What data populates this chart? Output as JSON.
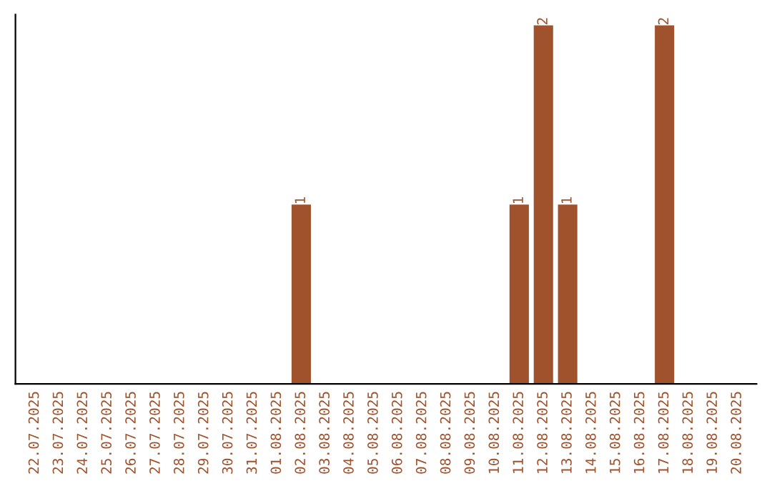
{
  "chart_data": {
    "type": "bar",
    "categories": [
      "22.07.2025",
      "23.07.2025",
      "24.07.2025",
      "25.07.2025",
      "26.07.2025",
      "27.07.2025",
      "28.07.2025",
      "29.07.2025",
      "30.07.2025",
      "31.07.2025",
      "01.08.2025",
      "02.08.2025",
      "03.08.2025",
      "04.08.2025",
      "05.08.2025",
      "06.08.2025",
      "07.08.2025",
      "08.08.2025",
      "09.08.2025",
      "10.08.2025",
      "11.08.2025",
      "12.08.2025",
      "13.08.2025",
      "14.08.2025",
      "15.08.2025",
      "16.08.2025",
      "17.08.2025",
      "18.08.2025",
      "19.08.2025",
      "20.08.2025"
    ],
    "values": [
      0,
      0,
      0,
      0,
      0,
      0,
      0,
      0,
      0,
      0,
      0,
      1,
      0,
      0,
      0,
      0,
      0,
      0,
      0,
      0,
      1,
      2,
      1,
      0,
      0,
      0,
      2,
      0,
      0,
      0
    ],
    "value_labels": [
      null,
      null,
      null,
      null,
      null,
      null,
      null,
      null,
      null,
      null,
      null,
      "1",
      null,
      null,
      null,
      null,
      null,
      null,
      null,
      null,
      "1",
      "2",
      "1",
      null,
      null,
      null,
      "2",
      null,
      null,
      null
    ],
    "color": "#a0522d",
    "tick_labels": "x",
    "grid": false,
    "legend": false
  }
}
